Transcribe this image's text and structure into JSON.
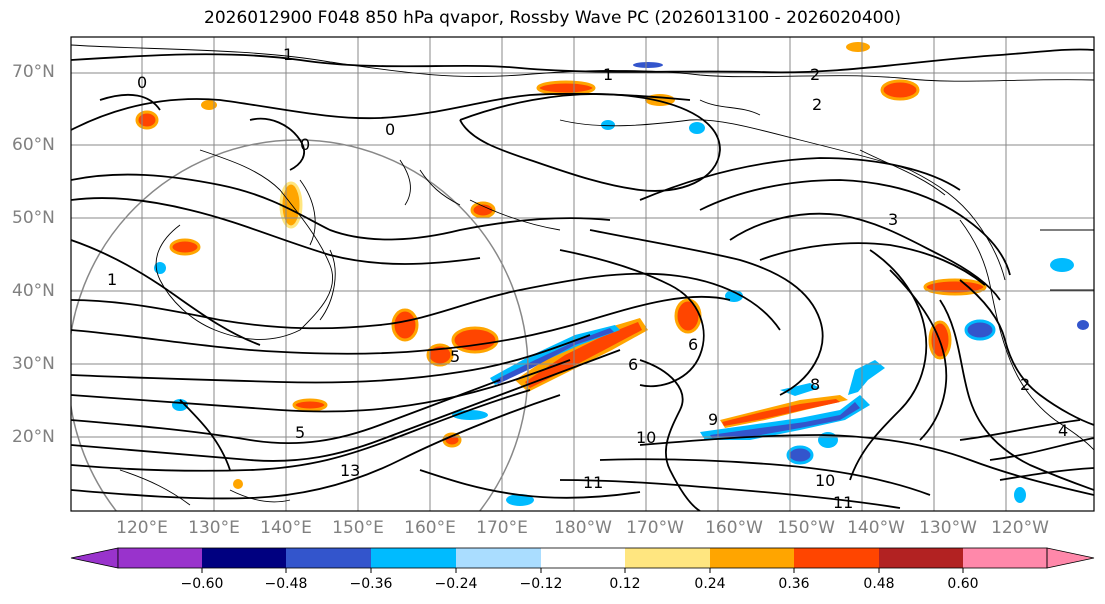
{
  "title": "2026012900 F048 850 hPa qvapor, Rossby Wave PC (2026013100 - 2026020400)",
  "lat_labels": [
    "70°N",
    "60°N",
    "50°N",
    "40°N",
    "30°N",
    "20°N"
  ],
  "lon_labels": [
    "120°E",
    "130°E",
    "140°E",
    "150°E",
    "160°E",
    "170°E",
    "180°W",
    "170°W",
    "160°W",
    "150°W",
    "140°W",
    "130°W",
    "120°W"
  ],
  "colorbar": {
    "labels": [
      "−0.60",
      "−0.48",
      "−0.36",
      "−0.24",
      "−0.12",
      "0.12",
      "0.24",
      "0.36",
      "0.48",
      "0.60"
    ],
    "colors": [
      "#9933cc",
      "#000080",
      "#3355cc",
      "#00bbff",
      "#aaddff",
      "#ffffff",
      "#ffe680",
      "#ffa500",
      "#ff4500",
      "#b22222",
      "#ff88aa"
    ]
  },
  "contour_labels": [
    "1",
    "1",
    "2",
    "2",
    "0",
    "0",
    "0",
    "1",
    "3",
    "5",
    "6",
    "8",
    "9",
    "10",
    "13",
    "11",
    "10",
    "11",
    "4",
    "2",
    "5",
    "6"
  ]
}
